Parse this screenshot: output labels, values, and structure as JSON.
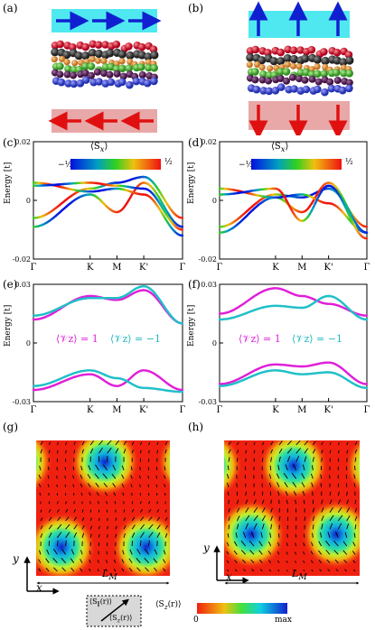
{
  "panels": {
    "a": "(a)",
    "b": "(b)",
    "c": "(c)",
    "d": "(d)",
    "e": "(e)",
    "f": "(f)",
    "g": "(g)",
    "h": "(h)"
  },
  "spin_plots": {
    "y_label": "Energy [t]",
    "y_ticks": [
      "0.02",
      "0",
      "-0.02"
    ],
    "x_ticks": [
      "Γ",
      "K",
      "M",
      "K'",
      "Γ"
    ],
    "colorbar_title": "⟨S",
    "colorbar_title_sub": "x",
    "colorbar_title_end": "⟩",
    "colorbar_min": "−½",
    "colorbar_max": "½"
  },
  "valley_plots": {
    "y_label": "Energy [t]",
    "y_ticks": [
      "0.03",
      "0",
      "-0.03"
    ],
    "x_ticks": [
      "Γ",
      "K",
      "M",
      "K'",
      "Γ"
    ],
    "label_plus": "⟨𝒱z⟩ = 1",
    "label_minus": "⟨𝒱z⟩ = −1",
    "color_plus": "#e020d8",
    "color_minus": "#20c0c8"
  },
  "maps": {
    "axis_x": "x",
    "axis_y": "y",
    "length_label": "L",
    "length_sub": "M"
  },
  "legend": {
    "inplane_label": "⟨S",
    "inplane_sub": "∥",
    "inplane_end": "(r)⟩",
    "sz_label": "⟨S",
    "sz_sub": "z",
    "sz_end": "(r)⟩",
    "colorbar_title": "⟨S",
    "colorbar_title_sub": "z",
    "colorbar_title_end": "(r)⟩",
    "colorbar_min": "0",
    "colorbar_max": "max"
  },
  "chart_data": [
    {
      "type": "line",
      "panel": "(c)",
      "ylabel": "Energy [t]",
      "ylim": [
        -0.02,
        0.02
      ],
      "categories": [
        "Γ",
        "K",
        "M",
        "K'",
        "Γ"
      ],
      "series": [
        {
          "values": [
            -0.006,
            0.004,
            0.006,
            0.008,
            -0.006
          ]
        },
        {
          "values": [
            -0.009,
            0.002,
            -0.004,
            0.006,
            -0.009
          ]
        },
        {
          "values": [
            0.006,
            0.003,
            0.004,
            0.002,
            -0.012
          ]
        },
        {
          "values": [
            0.005,
            0.006,
            0.005,
            0.004,
            -0.01
          ]
        }
      ]
    },
    {
      "type": "line",
      "panel": "(d)",
      "ylabel": "Energy [t]",
      "ylim": [
        -0.02,
        0.02
      ],
      "categories": [
        "Γ",
        "K",
        "M",
        "K'",
        "Γ"
      ],
      "series": [
        {
          "values": [
            -0.009,
            0.002,
            0.001,
            0.004,
            -0.009
          ]
        },
        {
          "values": [
            -0.011,
            0.001,
            -0.004,
            0.006,
            -0.011
          ]
        },
        {
          "values": [
            0.004,
            0.001,
            0.002,
            -0.001,
            -0.011
          ]
        },
        {
          "values": [
            0.002,
            0.004,
            -0.007,
            0.005,
            -0.013
          ]
        }
      ]
    },
    {
      "type": "line",
      "panel": "(e)",
      "ylabel": "Energy [t]",
      "ylim": [
        -0.03,
        0.03
      ],
      "categories": [
        "Γ",
        "K",
        "M",
        "K'",
        "Γ"
      ],
      "series": [
        {
          "name": "⟨𝒱z⟩ = 1",
          "values": [
            0.012,
            0.024,
            0.022,
            0.027,
            0.01
          ]
        },
        {
          "name": "⟨𝒱z⟩ = −1",
          "values": [
            0.014,
            0.023,
            0.023,
            0.029,
            0.01
          ]
        },
        {
          "name": "⟨𝒱z⟩ = 1",
          "values": [
            -0.024,
            -0.016,
            -0.022,
            -0.014,
            -0.024
          ]
        },
        {
          "name": "⟨𝒱z⟩ = −1",
          "values": [
            -0.022,
            -0.014,
            -0.018,
            -0.023,
            -0.025
          ]
        }
      ]
    },
    {
      "type": "line",
      "panel": "(f)",
      "ylabel": "Energy [t]",
      "ylim": [
        -0.03,
        0.03
      ],
      "categories": [
        "Γ",
        "K",
        "M",
        "K'",
        "Γ"
      ],
      "series": [
        {
          "name": "⟨𝒱z⟩ = 1",
          "values": [
            0.015,
            0.028,
            0.024,
            0.02,
            0.014
          ]
        },
        {
          "name": "⟨𝒱z⟩ = −1",
          "values": [
            0.012,
            0.019,
            0.018,
            0.024,
            0.012
          ]
        },
        {
          "name": "⟨𝒱z⟩ = 1",
          "values": [
            -0.021,
            -0.011,
            -0.012,
            -0.01,
            -0.021
          ]
        },
        {
          "name": "⟨𝒱z⟩ = −1",
          "values": [
            -0.022,
            -0.014,
            -0.016,
            -0.015,
            -0.023
          ]
        }
      ]
    }
  ]
}
